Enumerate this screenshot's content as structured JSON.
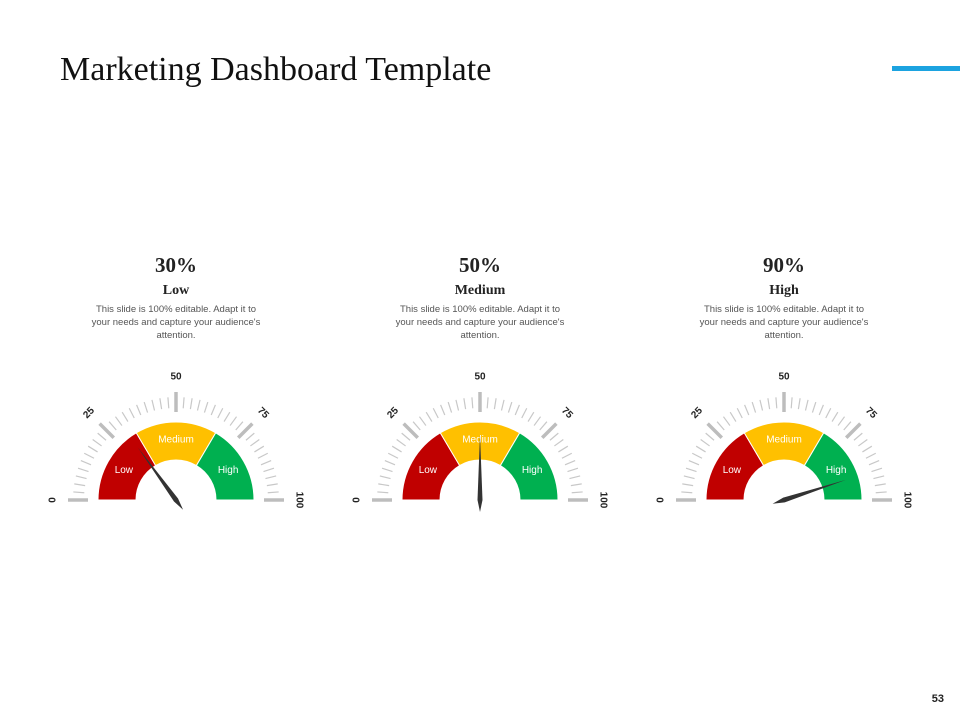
{
  "title": "Marketing Dashboard Template",
  "page_number": "53",
  "chart_data": [
    {
      "type": "gauge",
      "value": 30,
      "value_label": "30%",
      "label": "Low",
      "description": "This slide is 100% editable. Adapt it to your needs and capture your audience's attention.",
      "ylim": [
        0,
        100
      ],
      "yticks": [
        0,
        25,
        50,
        75,
        100
      ],
      "bands": [
        {
          "name": "Low",
          "color": "#c00000",
          "range": [
            0,
            33
          ]
        },
        {
          "name": "Medium",
          "color": "#ffc000",
          "range": [
            33,
            67
          ]
        },
        {
          "name": "High",
          "color": "#00b050",
          "range": [
            67,
            100
          ]
        }
      ]
    },
    {
      "type": "gauge",
      "value": 50,
      "value_label": "50%",
      "label": "Medium",
      "description": "This slide is 100% editable. Adapt it to your needs and capture your audience's attention.",
      "ylim": [
        0,
        100
      ],
      "yticks": [
        0,
        25,
        50,
        75,
        100
      ],
      "bands": [
        {
          "name": "Low",
          "color": "#c00000",
          "range": [
            0,
            33
          ]
        },
        {
          "name": "Medium",
          "color": "#ffc000",
          "range": [
            33,
            67
          ]
        },
        {
          "name": "High",
          "color": "#00b050",
          "range": [
            67,
            100
          ]
        }
      ]
    },
    {
      "type": "gauge",
      "value": 90,
      "value_label": "90%",
      "label": "High",
      "description": "This slide is 100% editable. Adapt it to your needs and capture your audience's attention.",
      "ylim": [
        0,
        100
      ],
      "yticks": [
        0,
        25,
        50,
        75,
        100
      ],
      "bands": [
        {
          "name": "Low",
          "color": "#c00000",
          "range": [
            0,
            33
          ]
        },
        {
          "name": "Medium",
          "color": "#ffc000",
          "range": [
            33,
            67
          ]
        },
        {
          "name": "High",
          "color": "#00b050",
          "range": [
            67,
            100
          ]
        }
      ]
    }
  ]
}
